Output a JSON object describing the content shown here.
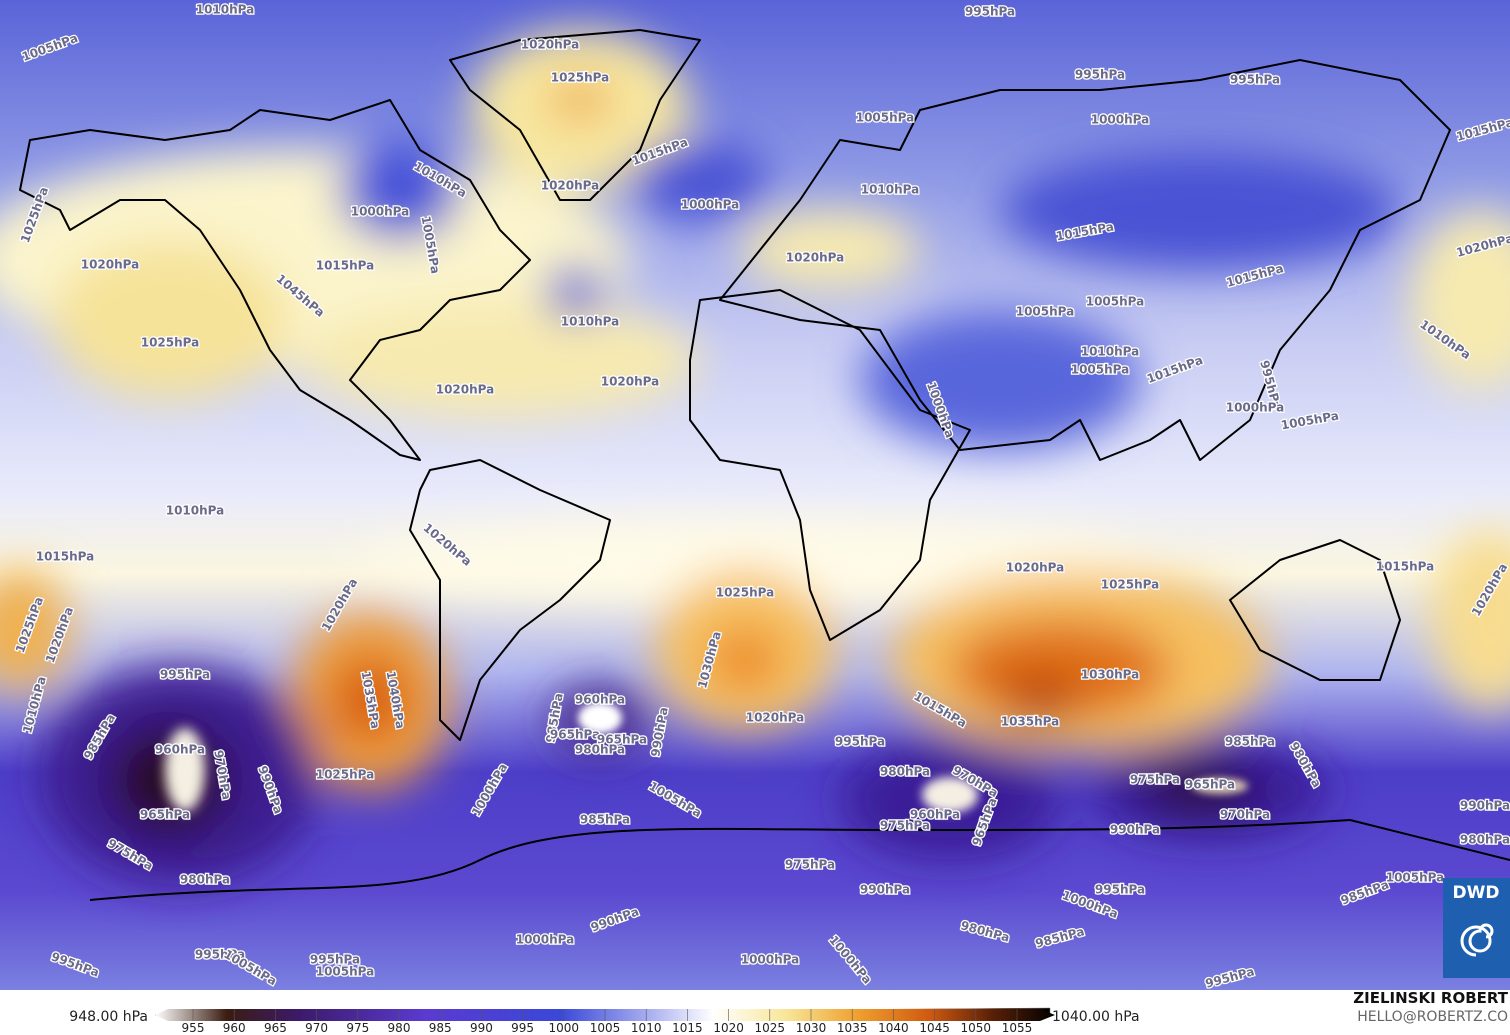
{
  "map": {
    "isobar_labels": [
      "1010hPa",
      "995hPa",
      "1005hPa",
      "1020hPa",
      "1025hPa",
      "995hPa",
      "995hPa",
      "1000hPa",
      "1005hPa",
      "1015hPa",
      "1015hPa",
      "1010hPa",
      "1020hPa",
      "1010hPa",
      "1000hPa",
      "1000hPa",
      "1005hPa",
      "1025hPa",
      "1020hPa",
      "1015hPa",
      "1015hPa",
      "1020hPa",
      "1020hPa",
      "1015hPa",
      "1045hPa",
      "1005hPa",
      "1005hPa",
      "1010hPa",
      "1025hPa",
      "1010hPa",
      "1010hPa",
      "1005hPa",
      "1015hPa",
      "1020hPa",
      "1020hPa",
      "995hPa",
      "1000hPa",
      "1000hPa",
      "1005hPa",
      "1010hPa",
      "1020hPa",
      "1015hPa",
      "1020hPa",
      "1015hPa",
      "1025hPa",
      "1025hPa",
      "1020hPa",
      "1025hPa",
      "1020hPa",
      "1020hPa",
      "1030hPa",
      "1030hPa",
      "1035hPa",
      "1040hPa",
      "1010hPa",
      "995hPa",
      "1015hPa",
      "1035hPa",
      "1020hPa",
      "960hPa",
      "985hPa",
      "990hPa",
      "965hPa",
      "965hPa",
      "980hPa",
      "985hPa",
      "960hPa",
      "970hPa",
      "990hPa",
      "965hPa",
      "1025hPa",
      "995hPa",
      "985hPa",
      "980hPa",
      "975hPa",
      "965hPa",
      "980hPa",
      "970hPa",
      "1000hPa",
      "1005hPa",
      "960hPa",
      "975hPa",
      "965hPa",
      "970hPa",
      "990hPa",
      "985hPa",
      "975hPa",
      "990hPa",
      "980hPa",
      "980hPa",
      "975hPa",
      "990hPa",
      "995hPa",
      "1000hPa",
      "1005hPa",
      "985hPa",
      "980hPa",
      "985hPa",
      "990hPa",
      "1000hPa",
      "995hPa",
      "995hPa",
      "1005hPa",
      "1005hPa",
      "995hPa",
      "1000hPa",
      "1000hPa",
      "995hPa"
    ],
    "logo": "DWD",
    "author": "ZIELINSKI ROBERT",
    "email": "HELLO@ROBERTZ.CO"
  },
  "colorbar": {
    "min_label": "948.00 hPa",
    "max_label": "1040.00 hPa",
    "ticks": [
      955,
      960,
      965,
      970,
      975,
      980,
      985,
      990,
      995,
      1000,
      1005,
      1010,
      1015,
      1020,
      1025,
      1030,
      1035,
      1040,
      1045,
      1050,
      1055
    ]
  }
}
